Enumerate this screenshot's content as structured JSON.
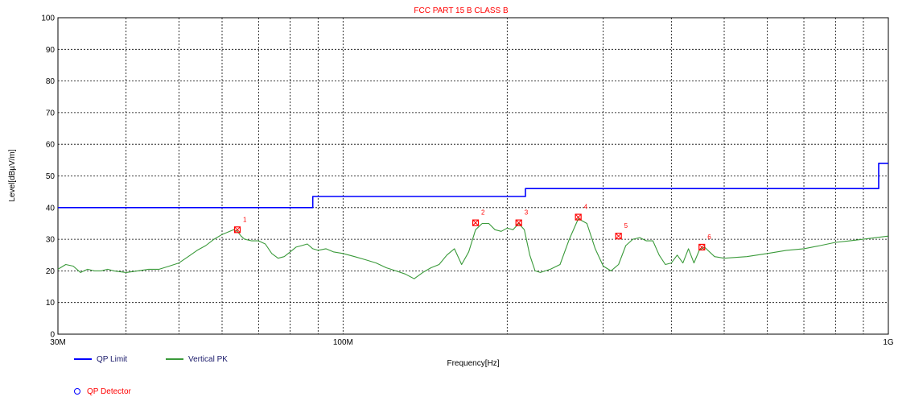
{
  "chart_data": {
    "type": "line",
    "title": "FCC PART 15 B CLASS B",
    "xlabel": "Frequency[Hz]",
    "ylabel": "Level[dBµV/m]",
    "x_scale": "log",
    "xlim": [
      30000000,
      1000000000
    ],
    "ylim": [
      0,
      100
    ],
    "x_tick_labels": [
      {
        "value": 30000000,
        "label": "30M"
      },
      {
        "value": 100000000,
        "label": "100M"
      },
      {
        "value": 1000000000,
        "label": "1G"
      }
    ],
    "y_ticks": [
      0,
      10,
      20,
      30,
      40,
      50,
      60,
      70,
      80,
      90,
      100
    ],
    "grid": true,
    "series": [
      {
        "name": "QP Limit",
        "color": "#0000ff",
        "step": true,
        "x": [
          30000000,
          88000000,
          88000000,
          216000000,
          216000000,
          960000000,
          960000000,
          1000000000
        ],
        "values": [
          40,
          40,
          43.5,
          43.5,
          46,
          46,
          54,
          54
        ]
      },
      {
        "name": "Vertical PK",
        "color": "#3a9a3a",
        "x": [
          30000000,
          31000000,
          32000000,
          33000000,
          34000000,
          35000000,
          36000000,
          37000000,
          38000000,
          40000000,
          42000000,
          44000000,
          46000000,
          48000000,
          50000000,
          52000000,
          54000000,
          56000000,
          58000000,
          60000000,
          62000000,
          63000000,
          64000000,
          65000000,
          66000000,
          68000000,
          70000000,
          72000000,
          74000000,
          76000000,
          78000000,
          80000000,
          82000000,
          84000000,
          86000000,
          88000000,
          90000000,
          93000000,
          96000000,
          100000000,
          105000000,
          110000000,
          115000000,
          120000000,
          125000000,
          130000000,
          135000000,
          140000000,
          145000000,
          150000000,
          155000000,
          160000000,
          165000000,
          170000000,
          175000000,
          180000000,
          185000000,
          190000000,
          195000000,
          200000000,
          205000000,
          210000000,
          215000000,
          220000000,
          225000000,
          230000000,
          240000000,
          250000000,
          260000000,
          270000000,
          280000000,
          290000000,
          300000000,
          310000000,
          320000000,
          330000000,
          340000000,
          350000000,
          360000000,
          370000000,
          380000000,
          390000000,
          400000000,
          410000000,
          420000000,
          430000000,
          440000000,
          450000000,
          460000000,
          480000000,
          500000000,
          550000000,
          600000000,
          650000000,
          700000000,
          750000000,
          800000000,
          850000000,
          900000000,
          950000000,
          1000000000
        ],
        "values": [
          20.5,
          22.0,
          21.5,
          19.5,
          20.5,
          20.0,
          20.0,
          20.5,
          20.0,
          19.5,
          20.0,
          20.5,
          20.5,
          21.5,
          22.5,
          24.5,
          26.5,
          28.0,
          30.0,
          31.5,
          32.5,
          33.0,
          32.5,
          31.0,
          30.0,
          29.5,
          29.5,
          28.5,
          25.5,
          24.0,
          24.5,
          26.0,
          27.5,
          28.0,
          28.5,
          27.0,
          26.5,
          27.0,
          26.0,
          25.5,
          24.5,
          23.5,
          22.5,
          21.0,
          20.0,
          19.0,
          17.5,
          19.5,
          21.0,
          22.0,
          25.0,
          27.0,
          22.0,
          26.0,
          33.0,
          35.0,
          35.0,
          33.0,
          32.5,
          33.5,
          33.0,
          35.0,
          33.0,
          25.0,
          20.0,
          19.5,
          20.5,
          22.0,
          30.0,
          36.5,
          35.0,
          27.0,
          21.5,
          20.0,
          22.0,
          28.0,
          30.0,
          30.5,
          29.5,
          29.5,
          25.0,
          22.0,
          22.5,
          25.0,
          22.5,
          27.0,
          22.5,
          26.5,
          27.5,
          24.5,
          24.0,
          24.5,
          25.5,
          26.5,
          27.0,
          28.0,
          29.0,
          29.5,
          30.0,
          30.5,
          31.0
        ]
      }
    ],
    "markers": [
      {
        "label": "1",
        "x": 64000000,
        "y": 33.0
      },
      {
        "label": "2",
        "x": 175000000,
        "y": 35.2
      },
      {
        "label": "3",
        "x": 210000000,
        "y": 35.2
      },
      {
        "label": "4",
        "x": 270000000,
        "y": 37.0
      },
      {
        "label": "5",
        "x": 320000000,
        "y": 31.0
      },
      {
        "label": "6",
        "x": 455000000,
        "y": 27.5
      }
    ],
    "colors": {
      "title": "#ff0000",
      "marker": "#ff0000",
      "grid": "#000000",
      "axis_text": "#000000"
    }
  },
  "legend": [
    {
      "label": "QP Limit",
      "color": "#0000ff"
    },
    {
      "label": "Vertical PK",
      "color": "#3a9a3a"
    },
    {
      "label": "QP Detector",
      "color": "#ff0000",
      "symbol": "circle"
    }
  ]
}
